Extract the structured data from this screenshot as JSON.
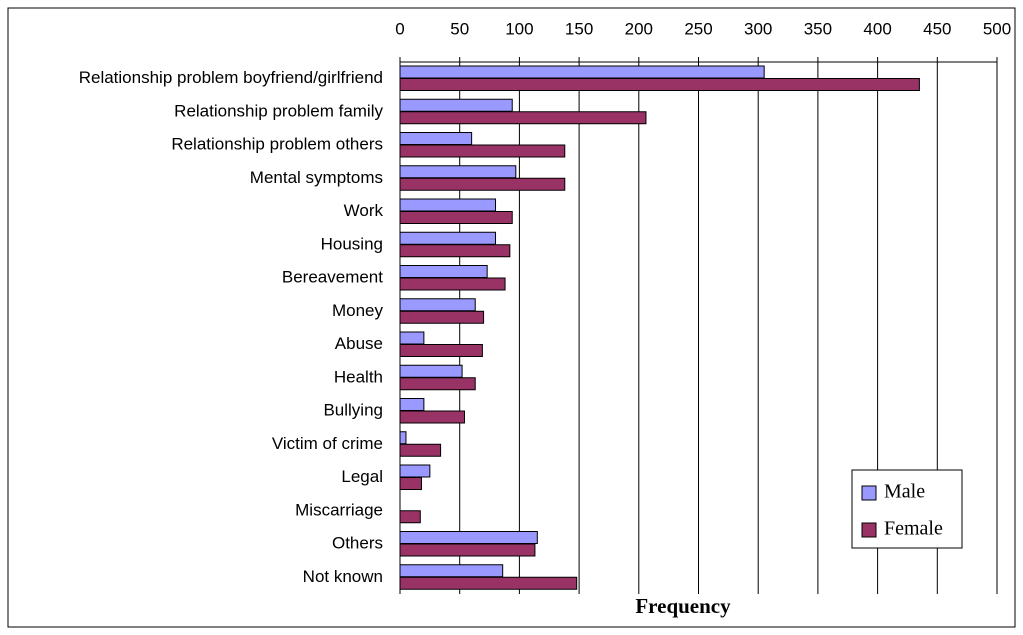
{
  "chart_data": {
    "type": "barh",
    "xlabel": "Frequency",
    "categories": [
      "Relationship problem boyfriend/girlfriend",
      "Relationship problem family",
      "Relationship problem others",
      "Mental symptoms",
      "Work",
      "Housing",
      "Bereavement",
      "Money",
      "Abuse",
      "Health",
      "Bullying",
      "Victim of crime",
      "Legal",
      "Miscarriage",
      "Others",
      "Not known"
    ],
    "series": [
      {
        "name": "Male",
        "color": "#9999ff",
        "values": [
          305,
          94,
          60,
          97,
          80,
          80,
          73,
          63,
          20,
          52,
          20,
          5,
          25,
          0,
          115,
          86
        ]
      },
      {
        "name": "Female",
        "color": "#993366",
        "values": [
          435,
          206,
          138,
          138,
          94,
          92,
          88,
          70,
          69,
          63,
          54,
          34,
          18,
          17,
          113,
          148
        ]
      }
    ],
    "xlim": [
      0,
      500
    ],
    "xticks": [
      0,
      50,
      100,
      150,
      200,
      250,
      300,
      350,
      400,
      450,
      500
    ],
    "grid": true,
    "legend": "lower right"
  }
}
